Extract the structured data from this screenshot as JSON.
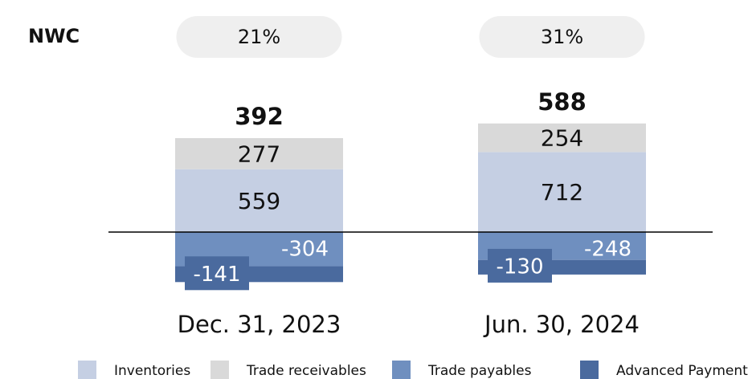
{
  "chart_data": {
    "type": "stacked_bar",
    "nwc": {
      "label": "NWC",
      "values": [
        21,
        31
      ],
      "value_labels": [
        "21%",
        "31%"
      ]
    },
    "categories": [
      "Dec. 31, 2023",
      "Jun. 30, 2024"
    ],
    "totals": [
      392,
      588
    ],
    "series": [
      {
        "name": "Inventories",
        "color": "#c5cfe3",
        "values": [
          559,
          712
        ]
      },
      {
        "name": "Trade receivables",
        "color": "#d9d9d9",
        "values": [
          277,
          254
        ]
      },
      {
        "name": "Trade payables",
        "color": "#6f8fbf",
        "values": [
          -304,
          -248
        ]
      },
      {
        "name": "Advanced Payments",
        "color": "#4a6a9e",
        "values": [
          -141,
          -130
        ]
      }
    ]
  }
}
